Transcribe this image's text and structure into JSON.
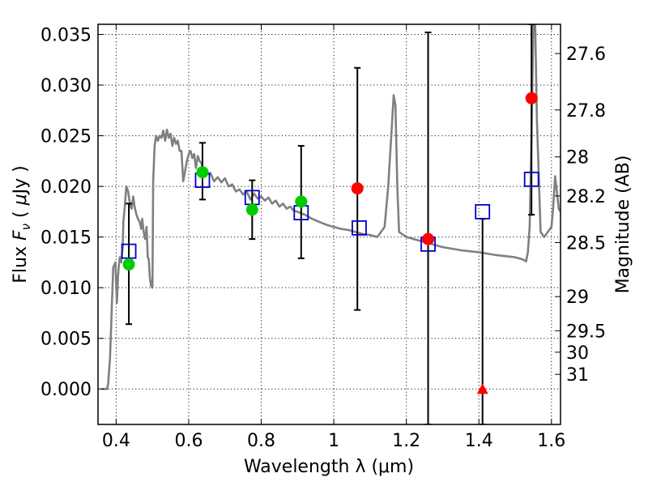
{
  "chart_data": {
    "type": "scatter",
    "xlabel": "Wavelength  λ (μm)",
    "ylabel_parts": [
      "Flux  ",
      "F",
      "ν",
      "  ( ",
      "μ",
      "Jy )"
    ],
    "ylabel_right": "Magnitude (AB)",
    "xlim": [
      0.35,
      1.625
    ],
    "ylim": [
      -0.0035,
      0.036
    ],
    "grid": true,
    "x_ticks": [
      {
        "value": 0.4,
        "label": "0.4"
      },
      {
        "value": 0.6,
        "label": "0.6"
      },
      {
        "value": 0.8,
        "label": "0.8"
      },
      {
        "value": 1.0,
        "label": "1"
      },
      {
        "value": 1.2,
        "label": "1.2"
      },
      {
        "value": 1.4,
        "label": "1.4"
      },
      {
        "value": 1.6,
        "label": "1.6"
      }
    ],
    "y_ticks": [
      {
        "value": 0.0,
        "label": "0.000"
      },
      {
        "value": 0.005,
        "label": "0.005"
      },
      {
        "value": 0.01,
        "label": "0.010"
      },
      {
        "value": 0.015,
        "label": "0.015"
      },
      {
        "value": 0.02,
        "label": "0.020"
      },
      {
        "value": 0.025,
        "label": "0.025"
      },
      {
        "value": 0.03,
        "label": "0.030"
      },
      {
        "value": 0.035,
        "label": "0.035"
      }
    ],
    "y2_ticks": [
      {
        "value": 27.6,
        "label": "27.6"
      },
      {
        "value": 27.8,
        "label": "27.8"
      },
      {
        "value": 28.0,
        "label": "28"
      },
      {
        "value": 28.2,
        "label": "28.2"
      },
      {
        "value": 28.5,
        "label": "28.5"
      },
      {
        "value": 29.0,
        "label": "29"
      },
      {
        "value": 29.5,
        "label": "29.5"
      },
      {
        "value": 30.0,
        "label": "30"
      },
      {
        "value": 31.0,
        "label": "31"
      }
    ],
    "series": [
      {
        "kind": "sed_model_line",
        "color": "#808080",
        "x": [
          0.36,
          0.375,
          0.378,
          0.383,
          0.388,
          0.392,
          0.398,
          0.402,
          0.405,
          0.407,
          0.41,
          0.414,
          0.418,
          0.42,
          0.424,
          0.428,
          0.433,
          0.437,
          0.44,
          0.443,
          0.447,
          0.451,
          0.454,
          0.456,
          0.46,
          0.465,
          0.469,
          0.472,
          0.476,
          0.48,
          0.484,
          0.487,
          0.49,
          0.493,
          0.496,
          0.5,
          0.502,
          0.506,
          0.51,
          0.515,
          0.52,
          0.525,
          0.53,
          0.535,
          0.54,
          0.545,
          0.55,
          0.555,
          0.56,
          0.565,
          0.57,
          0.575,
          0.58,
          0.585,
          0.59,
          0.595,
          0.6,
          0.605,
          0.61,
          0.615,
          0.62,
          0.625,
          0.63,
          0.635,
          0.64,
          0.645,
          0.65,
          0.66,
          0.67,
          0.68,
          0.69,
          0.7,
          0.71,
          0.72,
          0.73,
          0.74,
          0.75,
          0.76,
          0.77,
          0.78,
          0.79,
          0.8,
          0.81,
          0.82,
          0.83,
          0.84,
          0.85,
          0.86,
          0.87,
          0.88,
          0.89,
          0.9,
          0.92,
          0.94,
          0.96,
          0.98,
          1.0,
          1.02,
          1.04,
          1.06,
          1.08,
          1.1,
          1.12,
          1.14,
          1.15,
          1.16,
          1.165,
          1.17,
          1.175,
          1.18,
          1.2,
          1.25,
          1.3,
          1.35,
          1.4,
          1.45,
          1.5,
          1.52,
          1.53,
          1.535,
          1.54,
          1.545,
          1.55,
          1.555,
          1.56,
          1.57,
          1.58,
          1.6,
          1.605,
          1.61,
          1.615,
          1.62,
          1.625
        ],
        "y": [
          0.0,
          0.0,
          0.0005,
          0.003,
          0.008,
          0.012,
          0.0125,
          0.0085,
          0.011,
          0.012,
          0.013,
          0.0125,
          0.014,
          0.0165,
          0.018,
          0.02,
          0.0195,
          0.0185,
          0.018,
          0.0178,
          0.019,
          0.018,
          0.0175,
          0.0172,
          0.0168,
          0.0165,
          0.0158,
          0.0168,
          0.0155,
          0.0148,
          0.016,
          0.013,
          0.0128,
          0.011,
          0.0102,
          0.01,
          0.0205,
          0.024,
          0.025,
          0.0245,
          0.025,
          0.0248,
          0.0255,
          0.0245,
          0.0256,
          0.0248,
          0.0252,
          0.024,
          0.0248,
          0.0242,
          0.0245,
          0.0235,
          0.0235,
          0.0205,
          0.0215,
          0.0225,
          0.0232,
          0.0235,
          0.0228,
          0.0232,
          0.0218,
          0.023,
          0.0225,
          0.0223,
          0.0215,
          0.0217,
          0.0212,
          0.0213,
          0.0205,
          0.0209,
          0.0204,
          0.0208,
          0.02,
          0.0202,
          0.0195,
          0.0197,
          0.0192,
          0.0195,
          0.0187,
          0.0193,
          0.0188,
          0.019,
          0.0186,
          0.0189,
          0.0183,
          0.0186,
          0.018,
          0.0183,
          0.0178,
          0.018,
          0.0176,
          0.0175,
          0.0172,
          0.0168,
          0.0165,
          0.0162,
          0.016,
          0.0158,
          0.0157,
          0.0155,
          0.0153,
          0.0152,
          0.015,
          0.016,
          0.02,
          0.026,
          0.029,
          0.028,
          0.02,
          0.0155,
          0.015,
          0.0145,
          0.014,
          0.0137,
          0.0135,
          0.0132,
          0.013,
          0.0128,
          0.0126,
          0.0135,
          0.016,
          0.025,
          0.036,
          0.036,
          0.0265,
          0.0155,
          0.015,
          0.016,
          0.018,
          0.021,
          0.0195,
          0.0178,
          0.0175
        ]
      },
      {
        "kind": "model_photometry",
        "marker": "open-square",
        "color": "#0000cc",
        "x": [
          0.435,
          0.638,
          0.775,
          0.91,
          1.07,
          1.26,
          1.41,
          1.545
        ],
        "y": [
          0.0136,
          0.0206,
          0.0189,
          0.0174,
          0.0159,
          0.0143,
          0.0175,
          0.0207
        ]
      },
      {
        "kind": "observed_detection",
        "marker": "filled-circle",
        "color": "#00cc00",
        "x": [
          0.435,
          0.638,
          0.775,
          0.91
        ],
        "y": [
          0.0123,
          0.0214,
          0.0177,
          0.0185
        ],
        "err_low": [
          0.0064,
          0.0187,
          0.0148,
          0.0129
        ],
        "err_high": [
          0.0183,
          0.0243,
          0.0206,
          0.024
        ]
      },
      {
        "kind": "observed_low_sn",
        "marker": "filled-circle",
        "color": "#ff0000",
        "x": [
          1.065,
          1.26,
          1.545
        ],
        "y": [
          0.0198,
          0.0148,
          0.0287
        ],
        "err_low": [
          0.0078,
          -0.0035,
          0.0172
        ],
        "err_high": [
          0.0317,
          0.0352,
          0.036
        ]
      },
      {
        "kind": "observed_nondetection",
        "marker": "filled-triangle",
        "color": "#ff0000",
        "x": [
          1.41
        ],
        "y": [
          0.0
        ],
        "err_low": [
          -0.0035
        ],
        "err_high": [
          0.0168
        ]
      }
    ]
  }
}
